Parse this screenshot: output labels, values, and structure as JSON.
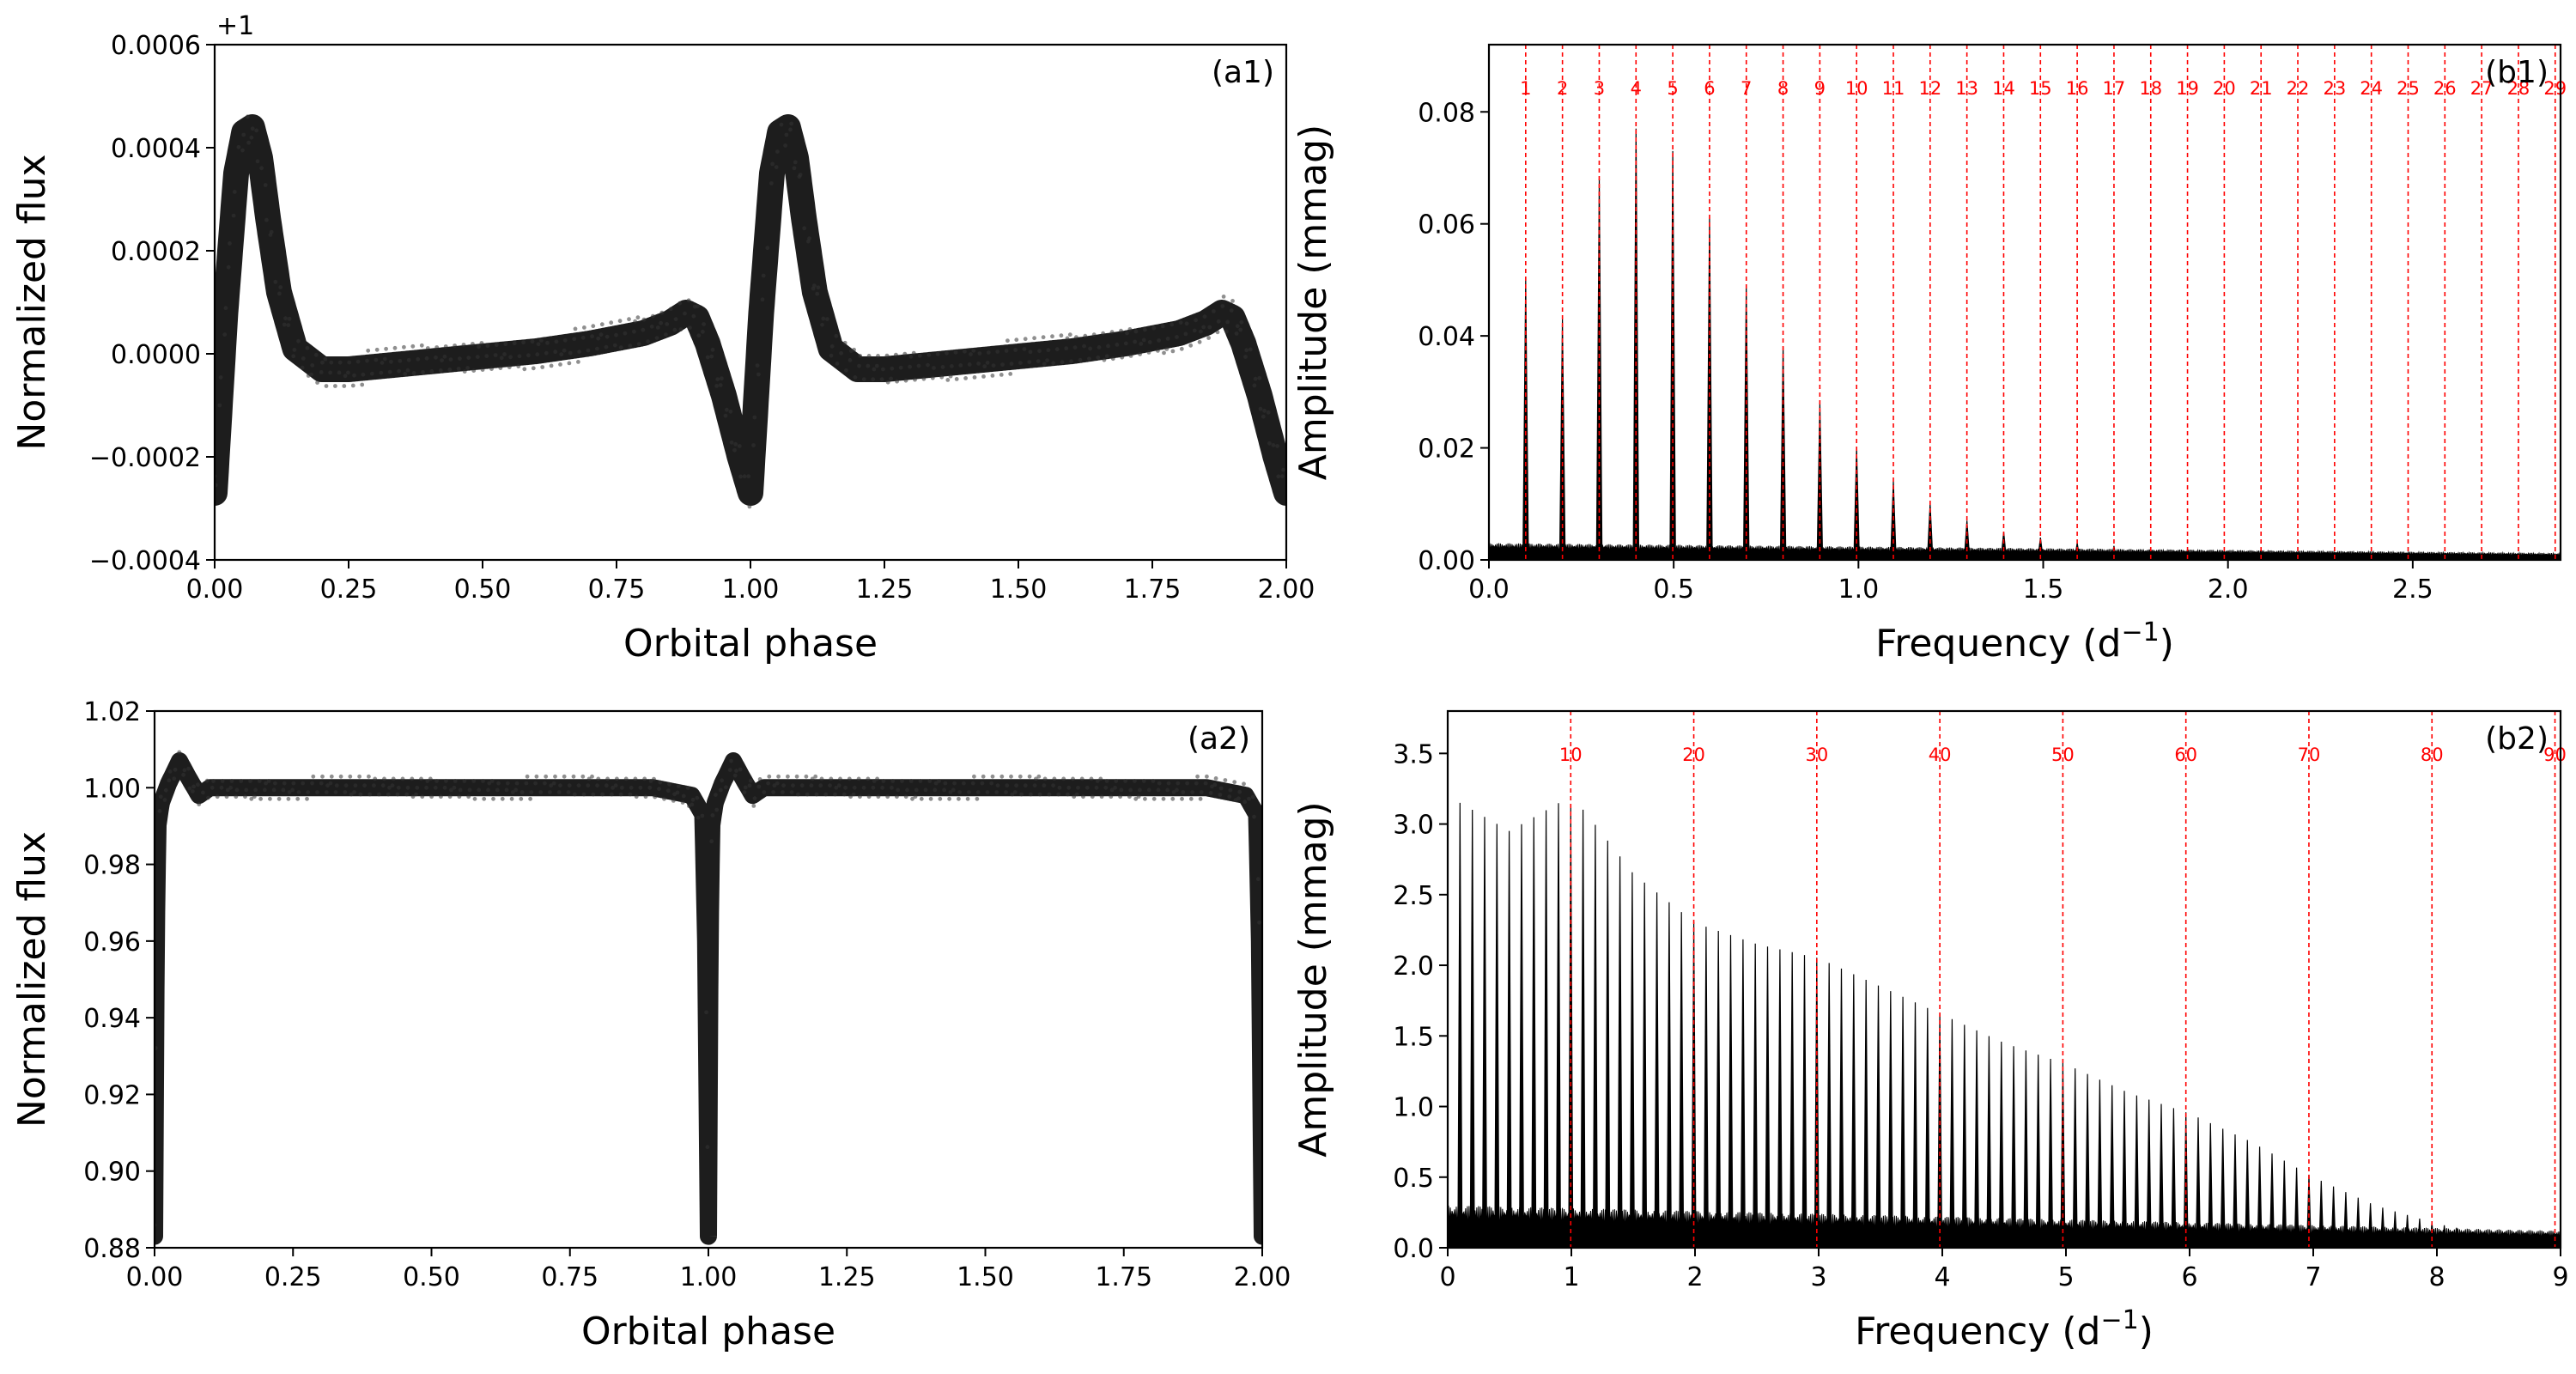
{
  "chart_data": [
    {
      "id": "a1",
      "type": "scatter",
      "panel_label": "(a1)",
      "xlabel": "Orbital phase",
      "ylabel": "Normalized flux",
      "offset_label": "+1",
      "xlim": [
        0.0,
        2.0
      ],
      "ylim": [
        -0.0004,
        0.0006
      ],
      "xticks": [
        0.0,
        0.25,
        0.5,
        0.75,
        1.0,
        1.25,
        1.5,
        1.75,
        2.0
      ],
      "xtick_labels": [
        "0.00",
        "0.25",
        "0.50",
        "0.75",
        "1.00",
        "1.25",
        "1.50",
        "1.75",
        "2.00"
      ],
      "yticks": [
        -0.0004,
        -0.0002,
        0.0,
        0.0002,
        0.0004,
        0.0006
      ],
      "ytick_labels": [
        "−0.0004",
        "−0.0002",
        "0.0000",
        "0.0002",
        "0.0004",
        "0.0006"
      ],
      "series": [
        {
          "name": "light curve (relative flux)",
          "x": [
            0.0,
            0.02,
            0.04,
            0.055,
            0.07,
            0.085,
            0.1,
            0.12,
            0.15,
            0.2,
            0.25,
            0.3,
            0.4,
            0.5,
            0.6,
            0.7,
            0.8,
            0.85,
            0.88,
            0.9,
            0.92,
            0.95,
            0.98,
            1.0
          ],
          "y": [
            -0.00027,
            8e-05,
            0.00035,
            0.00043,
            0.00044,
            0.00038,
            0.00026,
            0.00012,
            1e-05,
            -3e-05,
            -3e-05,
            -2.5e-05,
            -1.5e-05,
            -5e-06,
            5e-06,
            2e-05,
            4e-05,
            6e-05,
            8e-05,
            7e-05,
            2e-05,
            -8e-05,
            -0.0002,
            -0.00027
          ]
        }
      ]
    },
    {
      "id": "b1",
      "type": "line",
      "panel_label": "(b1)",
      "xlabel": "Frequency  (d",
      "xlabel_exp": "−1",
      "xlabel_close": ")",
      "ylabel": "Amplitude (mmag)",
      "xlim": [
        0.0,
        2.9
      ],
      "ylim": [
        0.0,
        0.092
      ],
      "xticks": [
        0.0,
        0.5,
        1.0,
        1.5,
        2.0,
        2.5
      ],
      "xtick_labels": [
        "0.0",
        "0.5",
        "1.0",
        "1.5",
        "2.0",
        "2.5"
      ],
      "yticks": [
        0.0,
        0.02,
        0.04,
        0.06,
        0.08
      ],
      "ytick_labels": [
        "0.00",
        "0.02",
        "0.04",
        "0.06",
        "0.08"
      ],
      "orbital_frequency": 0.0995,
      "harmonic_labels": [
        "1",
        "2",
        "3",
        "4",
        "5",
        "6",
        "7",
        "8",
        "9",
        "10",
        "11",
        "12",
        "13",
        "14",
        "15",
        "16",
        "17",
        "18",
        "19",
        "20",
        "21",
        "22",
        "23",
        "24",
        "25",
        "26",
        "27",
        "28",
        "29"
      ],
      "peak_amplitudes": [
        0.05,
        0.043,
        0.068,
        0.077,
        0.073,
        0.061,
        0.049,
        0.038,
        0.028,
        0.02,
        0.014,
        0.01,
        0.007,
        0.005,
        0.004,
        0.003,
        0.0025,
        0.002,
        0.0018,
        0.0016,
        0.0014,
        0.0012,
        0.0011,
        0.001,
        0.0009,
        0.0008,
        0.0008,
        0.0007,
        0.0006
      ],
      "noise_level": 0.003
    },
    {
      "id": "a2",
      "type": "scatter",
      "panel_label": "(a2)",
      "xlabel": "Orbital phase",
      "ylabel": "Normalized flux",
      "xlim": [
        0.0,
        2.0
      ],
      "ylim": [
        0.88,
        1.02
      ],
      "xticks": [
        0.0,
        0.25,
        0.5,
        0.75,
        1.0,
        1.25,
        1.5,
        1.75,
        2.0
      ],
      "xtick_labels": [
        "0.00",
        "0.25",
        "0.50",
        "0.75",
        "1.00",
        "1.25",
        "1.50",
        "1.75",
        "2.00"
      ],
      "yticks": [
        0.88,
        0.9,
        0.92,
        0.94,
        0.96,
        0.98,
        1.0,
        1.02
      ],
      "ytick_labels": [
        "0.88",
        "0.90",
        "0.92",
        "0.94",
        "0.96",
        "0.98",
        "1.00",
        "1.02"
      ],
      "series": [
        {
          "name": "light curve (normalized flux)",
          "x": [
            0.0,
            0.003,
            0.006,
            0.012,
            0.025,
            0.045,
            0.06,
            0.08,
            0.1,
            0.5,
            0.9,
            0.97,
            0.99,
            0.995,
            1.0
          ],
          "y": [
            0.883,
            0.96,
            0.99,
            0.996,
            1.001,
            1.007,
            1.003,
            0.998,
            1.0,
            1.0,
            1.0,
            0.998,
            0.993,
            0.96,
            0.883
          ]
        }
      ]
    },
    {
      "id": "b2",
      "type": "line",
      "panel_label": "(b2)",
      "xlabel": "Frequency  (d",
      "xlabel_exp": "−1",
      "xlabel_close": ")",
      "ylabel": "Amplitude (mmag)",
      "xlim": [
        0,
        9
      ],
      "ylim": [
        0.0,
        3.8
      ],
      "xticks": [
        0,
        1,
        2,
        3,
        4,
        5,
        6,
        7,
        8,
        9
      ],
      "xtick_labels": [
        "0",
        "1",
        "2",
        "3",
        "4",
        "5",
        "6",
        "7",
        "8",
        "9"
      ],
      "yticks": [
        0.0,
        0.5,
        1.0,
        1.5,
        2.0,
        2.5,
        3.0,
        3.5
      ],
      "ytick_labels": [
        "0.0",
        "0.5",
        "1.0",
        "1.5",
        "2.0",
        "2.5",
        "3.0",
        "3.5"
      ],
      "orbital_frequency": 0.0995,
      "harmonic_marker_step": 10,
      "harmonic_labels": [
        "10",
        "20",
        "30",
        "40",
        "50",
        "60",
        "70",
        "80",
        "90"
      ],
      "envelope_x": [
        0.1,
        0.5,
        0.9,
        1.1,
        1.5,
        2.0,
        2.5,
        3.0,
        3.5,
        4.0,
        4.5,
        5.0,
        5.5,
        6.0,
        6.5,
        7.0,
        7.5,
        8.0,
        8.5,
        8.9
      ],
      "envelope_y": [
        3.15,
        2.95,
        3.15,
        3.1,
        2.65,
        2.3,
        2.15,
        2.05,
        1.85,
        1.65,
        1.45,
        1.3,
        1.1,
        0.95,
        0.75,
        0.5,
        0.3,
        0.17,
        0.08,
        0.02
      ],
      "noise_level": 0.3
    }
  ]
}
